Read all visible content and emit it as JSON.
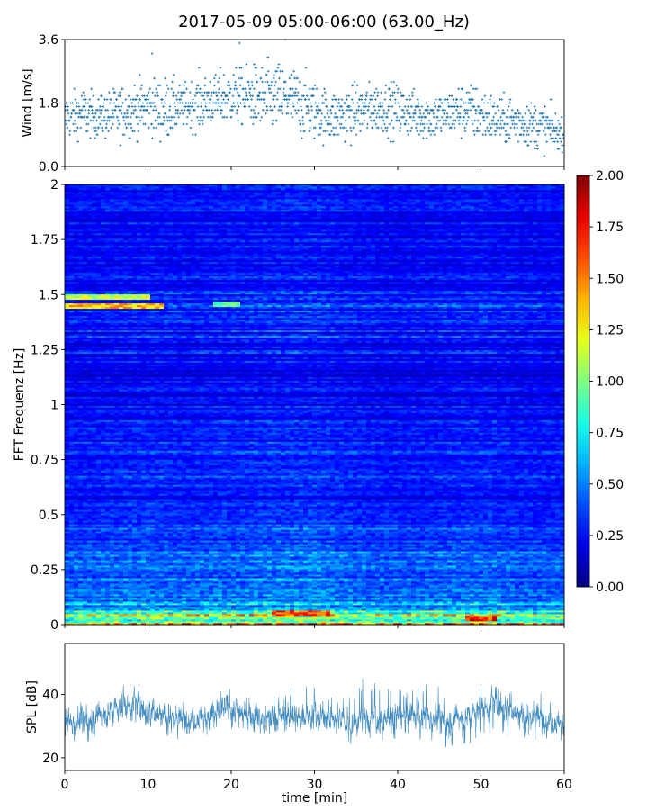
{
  "figure": {
    "title": "2017-05-09 05:00-06:00 (63.00_Hz)"
  },
  "chart_data": [
    {
      "type": "scatter",
      "panel": "wind",
      "title": "",
      "xlabel": "",
      "ylabel": "Wind [m/s]",
      "xlim": [
        0,
        60
      ],
      "ylim": [
        0,
        3.6
      ],
      "yticks": [
        "0.0",
        "1.8",
        "3.6"
      ],
      "xticks": [
        0,
        10,
        20,
        30,
        40,
        50,
        60
      ],
      "tick_labels_x_visible": false,
      "color": "#1f77b4",
      "marker": "+",
      "envelope_x": [
        0,
        2,
        4,
        6,
        8,
        10,
        12,
        14,
        16,
        18,
        20,
        22,
        24,
        26,
        28,
        30,
        32,
        34,
        36,
        38,
        40,
        42,
        44,
        46,
        48,
        50,
        52,
        54,
        56,
        58,
        60
      ],
      "envelope_mean": [
        1.4,
        1.5,
        1.4,
        1.5,
        1.6,
        1.7,
        1.6,
        1.7,
        1.8,
        1.9,
        2.0,
        2.0,
        1.9,
        2.0,
        1.8,
        1.6,
        1.4,
        1.5,
        1.6,
        1.7,
        1.6,
        1.5,
        1.4,
        1.5,
        1.6,
        1.5,
        1.3,
        1.3,
        1.2,
        1.1,
        0.9
      ],
      "envelope_max": [
        2.3,
        2.8,
        2.0,
        2.6,
        2.7,
        2.8,
        3.2,
        2.5,
        2.8,
        2.8,
        3.1,
        3.1,
        3.4,
        3.3,
        3.2,
        2.9,
        2.5,
        2.6,
        2.6,
        2.6,
        2.6,
        2.4,
        2.4,
        2.2,
        2.6,
        2.6,
        2.1,
        2.2,
        2.1,
        2.0,
        1.4
      ],
      "envelope_min": [
        0.7,
        0.7,
        0.5,
        0.6,
        0.6,
        0.8,
        0.7,
        0.8,
        0.7,
        0.9,
        1.0,
        0.9,
        0.6,
        0.8,
        0.6,
        0.6,
        0.6,
        0.5,
        0.6,
        0.6,
        0.6,
        0.6,
        0.6,
        0.5,
        0.5,
        0.5,
        0.4,
        0.3,
        0.3,
        0.3,
        0.4
      ],
      "extremes": [
        {
          "x": 21.0,
          "y": 3.5
        },
        {
          "x": 26.5,
          "y": 3.6
        },
        {
          "x": 10.5,
          "y": 3.2
        }
      ]
    },
    {
      "type": "heatmap",
      "panel": "spectrogram",
      "title": "",
      "xlabel": "",
      "ylabel": "FFT Frequenz [Hz]",
      "xlim": [
        0,
        60
      ],
      "ylim": [
        0,
        2
      ],
      "yticks": [
        "0",
        "0.25",
        "0.5",
        "0.75",
        "1",
        "1.25",
        "1.5",
        "1.75",
        "2"
      ],
      "colormap": "jet",
      "clim": [
        0.0,
        2.0
      ],
      "colorbar_ticks": [
        "0.00",
        "0.25",
        "0.50",
        "0.75",
        "1.00",
        "1.25",
        "1.50",
        "1.75",
        "2.00"
      ],
      "freq_profile_f": [
        0.0,
        0.02,
        0.05,
        0.1,
        0.15,
        0.25,
        0.35,
        0.5,
        0.75,
        1.0,
        1.25,
        1.45,
        1.5,
        1.75,
        2.0
      ],
      "freq_profile_level": [
        1.5,
        1.1,
        0.75,
        0.55,
        0.5,
        0.42,
        0.36,
        0.33,
        0.29,
        0.26,
        0.27,
        0.32,
        0.3,
        0.27,
        0.25
      ],
      "time_modulation_x": [
        0,
        5,
        10,
        15,
        20,
        25,
        30,
        35,
        40,
        45,
        50,
        55,
        60
      ],
      "time_modulation_level": [
        0.95,
        1.0,
        1.05,
        1.0,
        1.05,
        1.1,
        1.15,
        1.0,
        0.95,
        1.0,
        1.05,
        0.95,
        0.95
      ],
      "features": [
        {
          "x_start": 0,
          "x_end": 12,
          "f": 1.45,
          "level": 1.35
        },
        {
          "x_start": 0,
          "x_end": 10,
          "f": 1.49,
          "level": 1.15
        },
        {
          "x_start": 18,
          "x_end": 21,
          "f": 1.46,
          "level": 0.95
        },
        {
          "x_start": 25,
          "x_end": 32,
          "f": 0.05,
          "level": 1.6
        },
        {
          "x_start": 48,
          "x_end": 52,
          "f": 0.03,
          "level": 1.7
        }
      ]
    },
    {
      "type": "line",
      "panel": "spl",
      "title": "",
      "xlabel": "time [min]",
      "ylabel": "SPL [dB]",
      "xlim": [
        0,
        60
      ],
      "ylim": [
        16,
        56
      ],
      "yticks": [
        20,
        40
      ],
      "xticks": [
        0,
        10,
        20,
        30,
        40,
        50,
        60
      ],
      "color": "#1f77b4",
      "band_x": [
        0,
        2,
        4,
        6,
        8,
        10,
        12,
        14,
        16,
        18,
        20,
        22,
        24,
        26,
        28,
        30,
        32,
        34,
        36,
        38,
        40,
        42,
        44,
        46,
        48,
        50,
        52,
        54,
        56,
        58,
        60
      ],
      "band_mean": [
        31,
        32,
        33,
        36,
        37,
        35,
        34,
        32,
        33,
        34,
        36,
        34,
        32,
        33,
        33,
        34,
        32,
        31,
        32,
        32,
        33,
        33,
        33,
        32,
        33,
        36,
        37,
        35,
        33,
        32,
        31
      ],
      "band_upper": [
        39,
        41,
        43,
        44,
        47,
        42,
        44,
        40,
        42,
        43,
        50,
        45,
        41,
        45,
        52,
        51,
        44,
        45,
        50,
        52,
        48,
        47,
        55,
        42,
        42,
        44,
        48,
        45,
        43,
        46,
        38
      ],
      "band_lower": [
        22,
        22,
        24,
        27,
        27,
        26,
        25,
        23,
        25,
        24,
        23,
        24,
        24,
        24,
        24,
        23,
        24,
        22,
        22,
        21,
        23,
        22,
        22,
        20,
        18,
        19,
        21,
        22,
        23,
        21,
        22
      ]
    }
  ]
}
